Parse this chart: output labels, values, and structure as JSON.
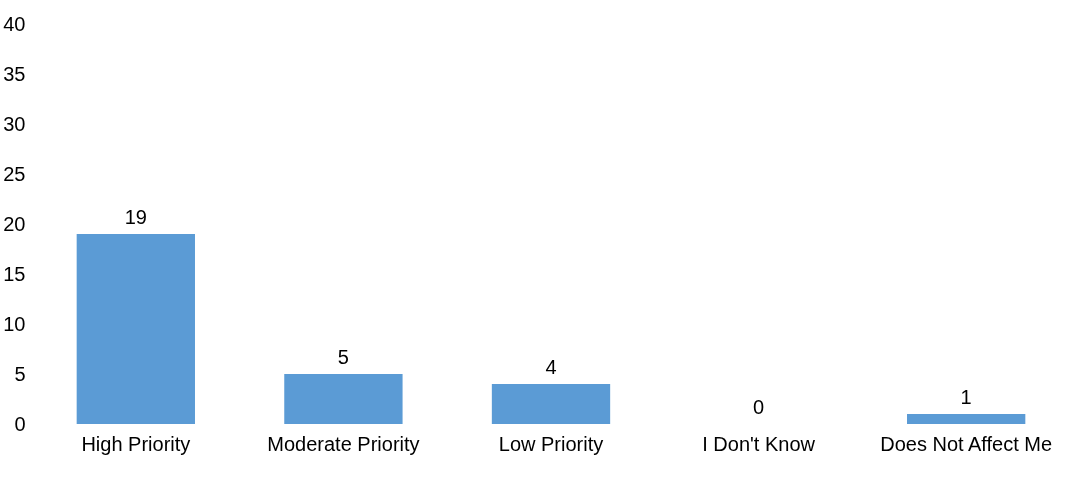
{
  "chart_data": {
    "type": "bar",
    "categories": [
      "High Priority",
      "Moderate Priority",
      "Low Priority",
      "I Don't Know",
      "Does Not Affect Me"
    ],
    "values": [
      19,
      5,
      4,
      0,
      1
    ],
    "color": "#5b9bd5",
    "ylim": [
      0,
      40
    ],
    "yticks": [
      0,
      5,
      10,
      15,
      20,
      25,
      30,
      35,
      40
    ],
    "data_labels": true
  }
}
